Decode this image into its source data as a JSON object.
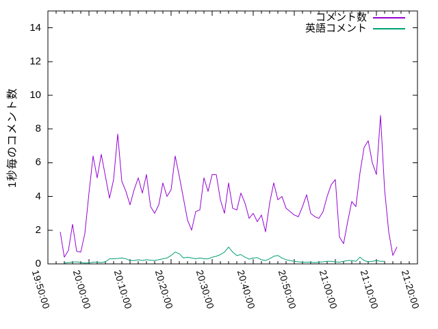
{
  "chart_data": {
    "type": "line",
    "title": "",
    "xlabel": "",
    "ylabel": "1秒毎のコメント数",
    "x_tick_labels": [
      "19:50:00",
      "20:00:00",
      "20:10:00",
      "20:20:00",
      "20:30:00",
      "20:40:00",
      "20:50:00",
      "21:00:00",
      "21:10:00",
      "21:20:00"
    ],
    "x_major_tick_minutes": [
      0,
      10,
      20,
      30,
      40,
      50,
      60,
      70,
      80,
      90
    ],
    "x_minor_tick_step_minutes": 2,
    "xlim_minutes_after_19_50": [
      0,
      90
    ],
    "y_ticks": [
      0,
      2,
      4,
      6,
      8,
      10,
      12,
      14
    ],
    "ylim": [
      0,
      15
    ],
    "grid": false,
    "legend_position": "inside top right",
    "background": "#ffffff",
    "axis_color": "#000000",
    "series": [
      {
        "name": "コメント数",
        "color": "#9400d3",
        "x_minutes_after_19_50": [
          3,
          4,
          5,
          6,
          7,
          8,
          9,
          10,
          11,
          12,
          13,
          14,
          15,
          16,
          17,
          18,
          19,
          20,
          21,
          22,
          23,
          24,
          25,
          26,
          27,
          28,
          29,
          30,
          31,
          32,
          33,
          34,
          35,
          36,
          37,
          38,
          39,
          40,
          41,
          42,
          43,
          44,
          45,
          46,
          47,
          48,
          49,
          50,
          51,
          52,
          53,
          54,
          55,
          56,
          57,
          58,
          59,
          60,
          61,
          62,
          63,
          64,
          65,
          66,
          67,
          68,
          69,
          70,
          71,
          72,
          73,
          74,
          75,
          76,
          77,
          78,
          79,
          80,
          81,
          82,
          83,
          84,
          85
        ],
        "values": [
          1.9,
          0.4,
          0.8,
          2.35,
          0.75,
          0.7,
          1.8,
          4.2,
          6.4,
          5.1,
          6.5,
          5.2,
          3.9,
          5.0,
          7.7,
          4.9,
          4.3,
          3.5,
          4.4,
          5.1,
          4.2,
          5.3,
          3.4,
          3.0,
          3.5,
          4.8,
          4.0,
          4.4,
          6.4,
          5.2,
          3.9,
          2.6,
          2.0,
          3.1,
          3.2,
          5.1,
          4.3,
          5.3,
          5.3,
          3.8,
          3.0,
          4.8,
          3.3,
          3.2,
          4.2,
          3.6,
          2.7,
          3.0,
          2.5,
          2.9,
          1.9,
          3.6,
          4.8,
          3.8,
          4.0,
          3.3,
          3.1,
          2.9,
          2.8,
          3.4,
          4.1,
          3.0,
          2.8,
          2.7,
          3.1,
          4.0,
          4.7,
          5.0,
          1.6,
          1.2,
          2.5,
          3.7,
          3.4,
          5.4,
          6.9,
          7.3,
          6.0,
          5.3,
          8.8,
          4.4,
          1.9,
          0.5,
          1.0
        ]
      },
      {
        "name": "英語コメント",
        "color": "#009e73",
        "x_minutes_after_19_50": [
          4,
          5,
          6,
          7,
          8,
          9,
          10,
          11,
          12,
          13,
          14,
          15,
          16,
          17,
          18,
          19,
          20,
          21,
          22,
          23,
          24,
          25,
          26,
          27,
          28,
          29,
          30,
          31,
          32,
          33,
          34,
          35,
          36,
          37,
          38,
          39,
          40,
          41,
          42,
          43,
          44,
          45,
          46,
          47,
          48,
          49,
          50,
          51,
          52,
          53,
          54,
          55,
          56,
          57,
          58,
          59,
          60,
          61,
          62,
          63,
          64,
          65,
          66,
          67,
          68,
          69,
          70,
          71,
          72,
          73,
          74,
          75,
          76,
          77,
          78,
          79,
          80,
          81,
          82
        ],
        "values": [
          0.05,
          0.08,
          0.1,
          0.12,
          0.08,
          0.05,
          0.06,
          0.1,
          0.1,
          0.08,
          0.12,
          0.3,
          0.3,
          0.32,
          0.35,
          0.3,
          0.2,
          0.2,
          0.25,
          0.2,
          0.25,
          0.22,
          0.2,
          0.25,
          0.3,
          0.35,
          0.5,
          0.7,
          0.6,
          0.35,
          0.4,
          0.35,
          0.3,
          0.35,
          0.3,
          0.3,
          0.4,
          0.45,
          0.55,
          0.7,
          1.0,
          0.7,
          0.5,
          0.55,
          0.4,
          0.28,
          0.35,
          0.37,
          0.25,
          0.2,
          0.3,
          0.45,
          0.5,
          0.35,
          0.25,
          0.2,
          0.15,
          0.12,
          0.1,
          0.1,
          0.1,
          0.08,
          0.1,
          0.12,
          0.15,
          0.15,
          0.12,
          0.1,
          0.15,
          0.2,
          0.2,
          0.15,
          0.4,
          0.2,
          0.12,
          0.15,
          0.2,
          0.15,
          0.15
        ]
      }
    ]
  }
}
